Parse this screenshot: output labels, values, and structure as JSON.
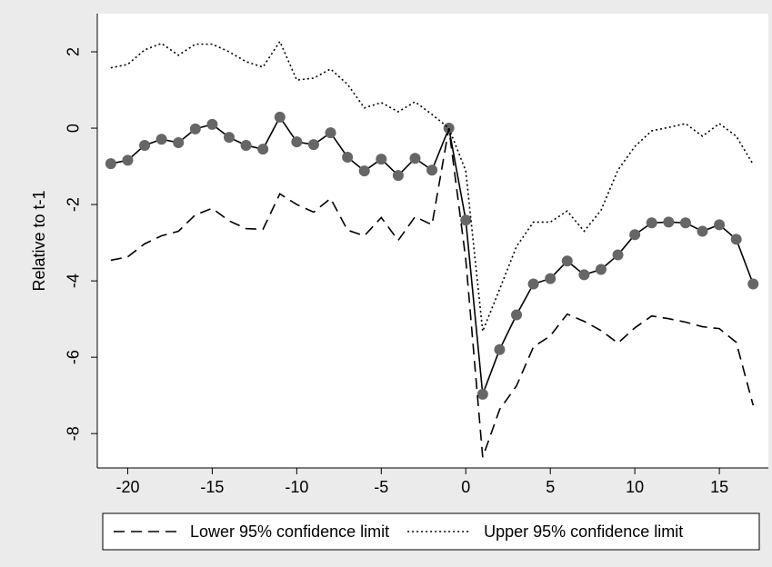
{
  "chart_data": {
    "type": "line",
    "y_label": "Relative to t-1",
    "xlim": [
      -21.8,
      17.9
    ],
    "xticks": [
      -20,
      -15,
      -10,
      -5,
      0,
      5,
      10,
      15
    ],
    "ylim": [
      -8.9,
      3.0
    ],
    "yticks": [
      -8,
      -6,
      -4,
      -2,
      0,
      2
    ],
    "grid": false,
    "x": [
      -21,
      -20,
      -19,
      -18,
      -17,
      -16,
      -15,
      -14,
      -13,
      -12,
      -11,
      -10,
      -9,
      -8,
      -7,
      -6,
      -5,
      -4,
      -3,
      -2,
      -1,
      0,
      1,
      2,
      3,
      4,
      5,
      6,
      7,
      8,
      9,
      10,
      11,
      12,
      13,
      14,
      15,
      16,
      17
    ],
    "series": [
      {
        "color": "#000000",
        "marker_color": "#666666",
        "style": "solid",
        "markers": true,
        "values": [
          -0.93,
          -0.84,
          -0.45,
          -0.29,
          -0.38,
          -0.02,
          0.1,
          -0.24,
          -0.45,
          -0.55,
          0.29,
          -0.36,
          -0.43,
          -0.12,
          -0.76,
          -1.12,
          -0.81,
          -1.24,
          -0.79,
          -1.1,
          0,
          -2.41,
          -6.97,
          -5.8,
          -4.89,
          -4.08,
          -3.94,
          -3.48,
          -3.84,
          -3.7,
          -3.32,
          -2.79,
          -2.48,
          -2.46,
          -2.48,
          -2.7,
          -2.53,
          -2.91,
          -4.08
        ]
      },
      {
        "name": "Lower 95% confidence limit",
        "color": "#000000",
        "style": "dashed",
        "markers": false,
        "values": [
          -3.46,
          -3.37,
          -3.03,
          -2.82,
          -2.7,
          -2.27,
          -2.1,
          -2.43,
          -2.63,
          -2.65,
          -1.72,
          -2.0,
          -2.2,
          -1.84,
          -2.67,
          -2.82,
          -2.34,
          -2.94,
          -2.32,
          -2.53,
          0,
          -3.44,
          -8.62,
          -7.37,
          -6.75,
          -5.73,
          -5.44,
          -4.87,
          -5.06,
          -5.3,
          -5.63,
          -5.23,
          -4.92,
          -4.99,
          -5.08,
          -5.2,
          -5.25,
          -5.61,
          -7.26
        ]
      },
      {
        "name": "Upper 95% confidence limit",
        "color": "#000000",
        "style": "dotted",
        "markers": false,
        "values": [
          1.58,
          1.67,
          2.05,
          2.22,
          1.91,
          2.2,
          2.2,
          2.0,
          1.74,
          1.6,
          2.27,
          1.26,
          1.31,
          1.55,
          1.15,
          0.53,
          0.67,
          0.43,
          0.69,
          0.36,
          0,
          -1.12,
          -5.32,
          -4.22,
          -3.1,
          -2.46,
          -2.46,
          -2.17,
          -2.7,
          -2.15,
          -1.1,
          -0.48,
          -0.07,
          0.02,
          0.12,
          -0.21,
          0.12,
          -0.21,
          -0.95
        ]
      }
    ]
  }
}
